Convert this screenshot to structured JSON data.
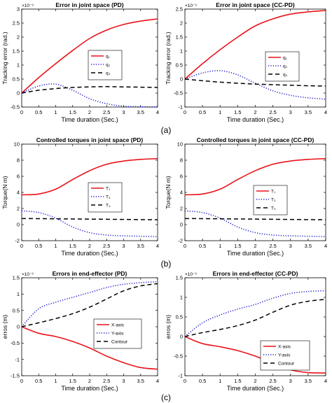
{
  "colors": {
    "q1": "#e8131a",
    "q2": "#1a1acc",
    "q3": "#000000",
    "axis": "#000000"
  },
  "captions": [
    "(a)",
    "(b)",
    "(c)"
  ],
  "chart_data": [
    {
      "type": "line",
      "title": "Error in joint space (PD)",
      "xlabel": "Time duration (Sec.)",
      "ylabel": "Tracking error (rad.)",
      "exponent_label": "×10⁻³",
      "xlim": [
        0,
        4
      ],
      "ylim": [
        -0.5,
        3
      ],
      "xticks": [
        "0",
        "0.5",
        "1",
        "1.5",
        "2",
        "2.5",
        "3",
        "3.5",
        "4"
      ],
      "yticks": [
        "-0.5",
        "0",
        "0.5",
        "1",
        "1.5",
        "2",
        "2.5",
        "3"
      ],
      "x": [
        0,
        0.5,
        1,
        1.5,
        2,
        2.5,
        3,
        3.5,
        4
      ],
      "legend_position": "center",
      "series": [
        {
          "name": "q₁",
          "color": "#e8131a",
          "dash": "solid",
          "values": [
            0,
            0.55,
            1.05,
            1.52,
            1.95,
            2.25,
            2.45,
            2.57,
            2.65
          ]
        },
        {
          "name": "q₂",
          "color": "#1a1acc",
          "dash": "dotted",
          "values": [
            0,
            0.25,
            0.32,
            0.1,
            -0.2,
            -0.38,
            -0.47,
            -0.49,
            -0.5
          ]
        },
        {
          "name": "q₃",
          "color": "#000000",
          "dash": "dashed",
          "values": [
            0,
            0.1,
            0.16,
            0.2,
            0.22,
            0.23,
            0.22,
            0.21,
            0.2
          ]
        }
      ]
    },
    {
      "type": "line",
      "title": "Error in joint space (CC-PD)",
      "xlabel": "Time duration (Sec.)",
      "ylabel": "Tracking error (rad.)",
      "exponent_label": "×10⁻³",
      "xlim": [
        0,
        4
      ],
      "ylim": [
        -1,
        2.5
      ],
      "xticks": [
        "0",
        "0.5",
        "1",
        "1.5",
        "2",
        "2.5",
        "3",
        "3.5",
        "4"
      ],
      "yticks": [
        "-1",
        "-0.5",
        "0",
        "0.5",
        "1",
        "1.5",
        "2",
        "2.5"
      ],
      "x": [
        0,
        0.5,
        1,
        1.5,
        2,
        2.5,
        3,
        3.5,
        4
      ],
      "legend_position": "center",
      "series": [
        {
          "name": "q₁",
          "color": "#e8131a",
          "dash": "solid",
          "values": [
            0,
            0.55,
            1.05,
            1.5,
            1.9,
            2.15,
            2.32,
            2.4,
            2.45
          ]
        },
        {
          "name": "q₂",
          "color": "#1a1acc",
          "dash": "dotted",
          "values": [
            0,
            0.22,
            0.3,
            0.15,
            -0.15,
            -0.42,
            -0.58,
            -0.67,
            -0.72
          ]
        },
        {
          "name": "q₃",
          "color": "#000000",
          "dash": "dashed",
          "values": [
            0,
            -0.06,
            -0.11,
            -0.15,
            -0.18,
            -0.2,
            -0.22,
            -0.24,
            -0.25
          ]
        }
      ]
    },
    {
      "type": "line",
      "title": "Controlled torques in joint space (PD)",
      "xlabel": "Time duration (Sec.)",
      "ylabel": "Torque(N m)",
      "exponent_label": "",
      "xlim": [
        0,
        4
      ],
      "ylim": [
        -2,
        10
      ],
      "xticks": [
        "0",
        "0.5",
        "1",
        "1.5",
        "2",
        "2.5",
        "3",
        "3.5",
        "4"
      ],
      "yticks": [
        "-2",
        "0",
        "2",
        "4",
        "6",
        "8",
        "10"
      ],
      "x": [
        0,
        0.5,
        1,
        1.5,
        2,
        2.5,
        3,
        3.5,
        4
      ],
      "legend_position": "center",
      "series": [
        {
          "name": "T₁",
          "color": "#e8131a",
          "dash": "solid",
          "values": [
            3.7,
            3.8,
            4.4,
            5.6,
            6.7,
            7.5,
            7.9,
            8.1,
            8.2
          ]
        },
        {
          "name": "T₂",
          "color": "#1a1acc",
          "dash": "dotted",
          "values": [
            1.7,
            1.5,
            0.8,
            -0.3,
            -1.0,
            -1.3,
            -1.4,
            -1.45,
            -1.5
          ]
        },
        {
          "name": "T₃",
          "color": "#000000",
          "dash": "dashed",
          "values": [
            0.75,
            0.74,
            0.72,
            0.7,
            0.68,
            0.66,
            0.64,
            0.62,
            0.6
          ]
        }
      ]
    },
    {
      "type": "line",
      "title": "Controlled torques in joint space (CC-PD)",
      "xlabel": "Time duration (Sec.)",
      "ylabel": "Torque(N m)",
      "exponent_label": "",
      "xlim": [
        0,
        4
      ],
      "ylim": [
        -2,
        10
      ],
      "xticks": [
        "0",
        "0.5",
        "1",
        "1.5",
        "2",
        "2.5",
        "3",
        "3.5",
        "4"
      ],
      "yticks": [
        "-2",
        "0",
        "2",
        "4",
        "6",
        "8",
        "10"
      ],
      "x": [
        0,
        0.5,
        1,
        1.5,
        2,
        2.5,
        3,
        3.5,
        4
      ],
      "legend_position": "center",
      "series": [
        {
          "name": "T₁",
          "color": "#e8131a",
          "dash": "solid",
          "values": [
            3.7,
            3.8,
            4.4,
            5.6,
            6.7,
            7.5,
            7.9,
            8.1,
            8.2
          ]
        },
        {
          "name": "T₂",
          "color": "#1a1acc",
          "dash": "dotted",
          "values": [
            1.7,
            1.5,
            0.8,
            -0.3,
            -1.0,
            -1.3,
            -1.4,
            -1.45,
            -1.5
          ]
        },
        {
          "name": "T₃",
          "color": "#000000",
          "dash": "dashed",
          "values": [
            0.75,
            0.74,
            0.72,
            0.7,
            0.68,
            0.66,
            0.64,
            0.62,
            0.6
          ]
        }
      ]
    },
    {
      "type": "line",
      "title": "Errors in end-effector (PD)",
      "xlabel": "Time duration (Sec.)",
      "ylabel": "erros (m)",
      "exponent_label": "×10⁻³",
      "xlim": [
        0,
        4
      ],
      "ylim": [
        -1.5,
        1.5
      ],
      "xticks": [
        "0",
        "0.5",
        "1",
        "1.5",
        "2",
        "2.5",
        "3",
        "3.5",
        "4"
      ],
      "yticks": [
        "-1.5",
        "-1",
        "-0.5",
        "0",
        "0.5",
        "1",
        "1.5"
      ],
      "x": [
        0,
        0.5,
        1,
        1.5,
        2,
        2.5,
        3,
        3.5,
        4
      ],
      "legend_position": "center",
      "series": [
        {
          "name": "X-axis",
          "color": "#e8131a",
          "dash": "solid",
          "values": [
            0,
            -0.2,
            -0.3,
            -0.45,
            -0.65,
            -0.9,
            -1.1,
            -1.25,
            -1.3
          ]
        },
        {
          "name": "Y-axis",
          "color": "#1a1acc",
          "dash": "dotted",
          "values": [
            0,
            0.55,
            0.75,
            0.9,
            1.05,
            1.2,
            1.3,
            1.35,
            1.38
          ]
        },
        {
          "name": "Contour",
          "color": "#000000",
          "dash": "dashed",
          "values": [
            0,
            0.12,
            0.25,
            0.4,
            0.6,
            0.85,
            1.1,
            1.25,
            1.32
          ]
        }
      ]
    },
    {
      "type": "line",
      "title": "Errors in end-effector (CC-PD)",
      "xlabel": "Time duration (Sec.)",
      "ylabel": "erros (m)",
      "exponent_label": "×10⁻³",
      "xlim": [
        0,
        4
      ],
      "ylim": [
        -1,
        1.5
      ],
      "xticks": [
        "0",
        "0.5",
        "1",
        "1.5",
        "2",
        "2.5",
        "3",
        "3.5",
        "4"
      ],
      "yticks": [
        "-1",
        "-0.5",
        "0",
        "0.5",
        "1",
        "1.5"
      ],
      "x": [
        0,
        0.5,
        1,
        1.5,
        2,
        2.5,
        3,
        3.5,
        4
      ],
      "legend_position": "center",
      "series": [
        {
          "name": "X-axis",
          "color": "#e8131a",
          "dash": "solid",
          "values": [
            0,
            -0.18,
            -0.26,
            -0.36,
            -0.5,
            -0.68,
            -0.85,
            -0.92,
            -0.93
          ]
        },
        {
          "name": "Y-axis",
          "color": "#1a1acc",
          "dash": "dotted",
          "values": [
            0,
            0.35,
            0.55,
            0.7,
            0.82,
            0.98,
            1.1,
            1.15,
            1.17
          ]
        },
        {
          "name": "Contour",
          "color": "#000000",
          "dash": "dashed",
          "values": [
            0,
            0.1,
            0.18,
            0.28,
            0.42,
            0.62,
            0.8,
            0.9,
            0.95
          ]
        }
      ]
    }
  ]
}
